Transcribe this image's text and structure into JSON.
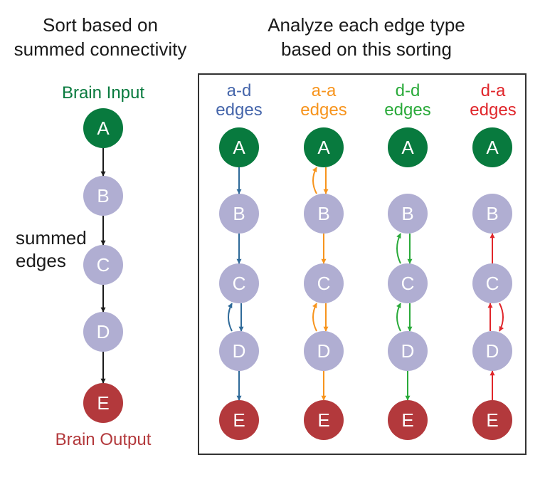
{
  "headers": {
    "left": [
      "Sort based on",
      "summed connectivity"
    ],
    "right": [
      "Analyze each edge type",
      "based on this sorting"
    ]
  },
  "left_column": {
    "brain_input": "Brain Input",
    "brain_output": "Brain Output",
    "side_label": [
      "summed",
      "edges"
    ]
  },
  "nodes": [
    "A",
    "B",
    "C",
    "D",
    "E"
  ],
  "colors": {
    "input_node": "#087a3e",
    "output_node": "#b3393c",
    "middle_node": "#b0aed2",
    "black": "#1a1a1a",
    "blue": "#2f6a99",
    "orange": "#f7941d",
    "green": "#2aaa3a",
    "red": "#e0262b"
  },
  "columns": [
    {
      "title": [
        "a-d",
        "edges"
      ],
      "color": "#4666ab",
      "line_color": "#2f6a99",
      "down": [
        [
          0,
          1
        ],
        [
          1,
          2
        ],
        [
          2,
          3
        ],
        [
          3,
          4
        ]
      ],
      "up_curved": [
        [
          3,
          2
        ]
      ],
      "down_curved": [],
      "up": []
    },
    {
      "title": [
        "a-a",
        "edges"
      ],
      "color": "#f7941d",
      "line_color": "#f7941d",
      "down": [
        [
          0,
          1
        ],
        [
          1,
          2
        ],
        [
          2,
          3
        ],
        [
          3,
          4
        ]
      ],
      "up_curved": [
        [
          1,
          0
        ],
        [
          3,
          2
        ]
      ],
      "down_curved": [],
      "up": []
    },
    {
      "title": [
        "d-d",
        "edges"
      ],
      "color": "#2aaa3a",
      "line_color": "#2aaa3a",
      "down": [
        [
          1,
          2
        ],
        [
          2,
          3
        ],
        [
          3,
          4
        ]
      ],
      "up_curved": [
        [
          2,
          1
        ],
        [
          3,
          2
        ]
      ],
      "down_curved": [],
      "up": []
    },
    {
      "title": [
        "d-a",
        "edges"
      ],
      "color": "#e0262b",
      "line_color": "#e0262b",
      "down": [],
      "up_curved": [],
      "down_curved": [
        [
          2,
          3
        ]
      ],
      "up": [
        [
          2,
          1
        ],
        [
          3,
          2
        ],
        [
          4,
          3
        ]
      ]
    }
  ]
}
